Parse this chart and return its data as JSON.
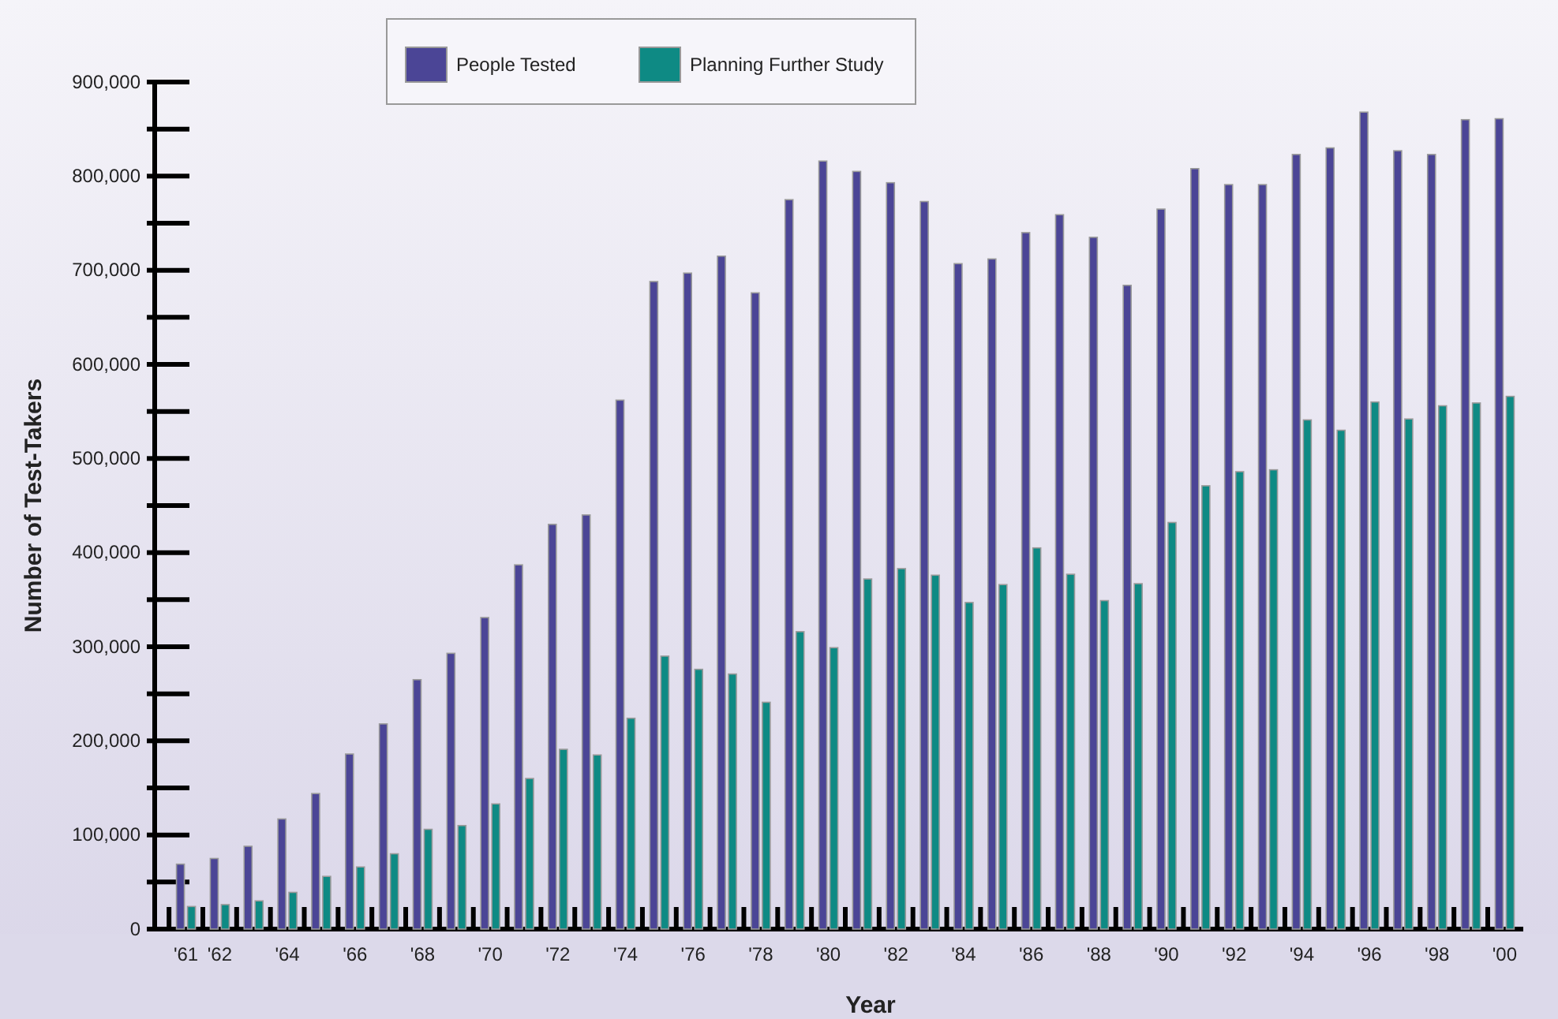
{
  "chart_data": {
    "type": "bar",
    "xlabel": "Year",
    "ylabel": "Number of Test-Takers",
    "categories": [
      "'61",
      "'62",
      null,
      "'64",
      null,
      "'66",
      null,
      "'68",
      null,
      "'70",
      null,
      "'72",
      null,
      "'74",
      null,
      "'76",
      null,
      "'78",
      null,
      "'80",
      null,
      "'82",
      null,
      "'84",
      null,
      "'86",
      null,
      "'88",
      null,
      "'90",
      null,
      "'92",
      null,
      "'94",
      null,
      "'96",
      null,
      "'98",
      null,
      "'00"
    ],
    "series": [
      {
        "name": "People Tested",
        "color": "#4b4596",
        "values": [
          69000,
          75000,
          88000,
          117000,
          144000,
          186000,
          218000,
          265000,
          293000,
          331000,
          387000,
          430000,
          440000,
          562000,
          688000,
          697000,
          715000,
          676000,
          775000,
          816000,
          805000,
          793000,
          773000,
          707000,
          712000,
          740000,
          759000,
          735000,
          684000,
          765000,
          808000,
          791000,
          791000,
          823000,
          830000,
          868000,
          827000,
          823000,
          860000,
          861000
        ]
      },
      {
        "name": "Planning Further Study",
        "color": "#0e8a84",
        "values": [
          24000,
          26000,
          30000,
          39000,
          56000,
          66000,
          80000,
          106000,
          110000,
          133000,
          160000,
          191000,
          185000,
          224000,
          290000,
          276000,
          271000,
          241000,
          316000,
          299000,
          372000,
          383000,
          376000,
          347000,
          366000,
          405000,
          377000,
          349000,
          367000,
          432000,
          471000,
          486000,
          488000,
          541000,
          530000,
          560000,
          542000,
          556000,
          559000,
          566000
        ]
      }
    ],
    "ylim": [
      0,
      900000
    ],
    "yticks": [
      0,
      {
        "value": 50000,
        "label": null
      },
      {
        "value": 100000,
        "label": "100,000"
      },
      {
        "value": 150000,
        "label": null
      },
      {
        "value": 200000,
        "label": "200,000"
      },
      {
        "value": 250000,
        "label": null
      },
      {
        "value": 300000,
        "label": "300,000"
      },
      {
        "value": 350000,
        "label": null
      },
      {
        "value": 400000,
        "label": "400,000"
      },
      {
        "value": 450000,
        "label": null
      },
      {
        "value": 500000,
        "label": "500,000"
      },
      {
        "value": 550000,
        "label": null
      },
      {
        "value": 600000,
        "label": "600,000"
      },
      {
        "value": 650000,
        "label": null
      },
      {
        "value": 700000,
        "label": "700,000"
      },
      {
        "value": 750000,
        "label": null
      },
      {
        "value": 800000,
        "label": "800,000"
      },
      {
        "value": 850000,
        "label": null
      },
      {
        "value": 900000,
        "label": "900,000"
      }
    ],
    "legend": "top",
    "grid": false
  }
}
